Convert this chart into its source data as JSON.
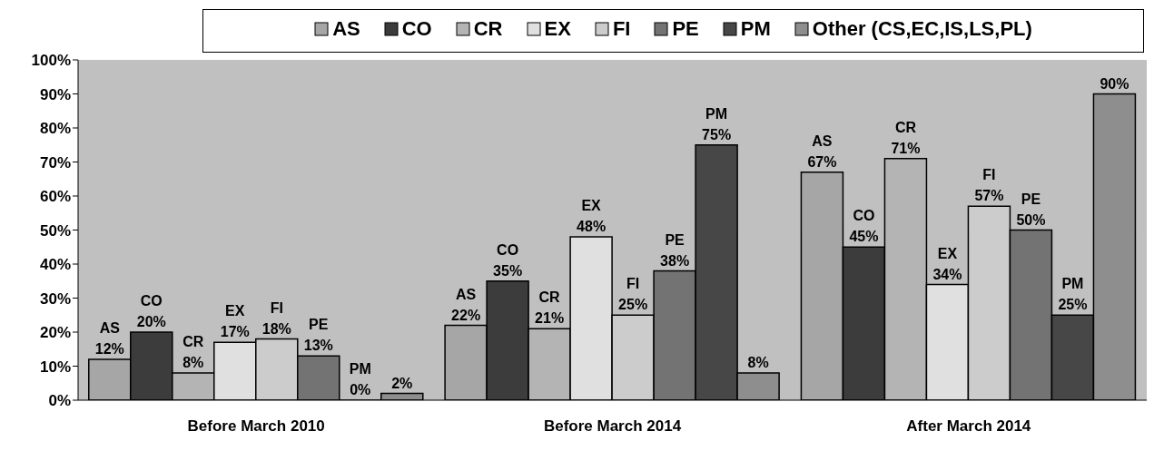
{
  "chart_data": {
    "type": "bar",
    "categories": [
      "Before March 2010",
      "Before March 2014",
      "After March 2014"
    ],
    "series": [
      {
        "name": "AS",
        "color": "#a6a6a6",
        "values": [
          12,
          22,
          67
        ],
        "value_labels": [
          "AS 12%",
          "AS 22%",
          "AS 67%"
        ]
      },
      {
        "name": "CO",
        "color": "#3c3c3c",
        "values": [
          20,
          35,
          45
        ],
        "value_labels": [
          "CO 20%",
          "CO 35%",
          "CO 45%"
        ]
      },
      {
        "name": "CR",
        "color": "#b4b4b4",
        "values": [
          8,
          21,
          71
        ],
        "value_labels": [
          "CR 8%",
          "CR 21%",
          "CR 71%"
        ]
      },
      {
        "name": "EX",
        "color": "#e0e0e0",
        "values": [
          17,
          48,
          34
        ],
        "value_labels": [
          "EX 17%",
          "EX 48%",
          "EX 34%"
        ]
      },
      {
        "name": "FI",
        "color": "#cccccc",
        "values": [
          18,
          25,
          57
        ],
        "value_labels": [
          "FI 18%",
          "FI 25%",
          "FI 57%"
        ]
      },
      {
        "name": "PE",
        "color": "#737373",
        "values": [
          13,
          38,
          50
        ],
        "value_labels": [
          "PE 13%",
          "PE 38%",
          "PE 50%"
        ]
      },
      {
        "name": "PM",
        "color": "#474747",
        "values": [
          0,
          75,
          25
        ],
        "value_labels": [
          "PM 0%",
          "PM 75%",
          "PM 25%"
        ]
      },
      {
        "name": "Other (CS,EC,IS,LS,PL)",
        "color": "#8e8e8e",
        "values": [
          2,
          8,
          90
        ],
        "value_labels": [
          "2%",
          "8%",
          "90%"
        ]
      }
    ],
    "ylim": [
      0,
      100
    ],
    "yticks": [
      {
        "value": 0,
        "label": "0%"
      },
      {
        "value": 10,
        "label": "10%"
      },
      {
        "value": 20,
        "label": "20%"
      },
      {
        "value": 30,
        "label": "30%"
      },
      {
        "value": 40,
        "label": "40%"
      },
      {
        "value": 50,
        "label": "50%"
      },
      {
        "value": 60,
        "label": "60%"
      },
      {
        "value": 70,
        "label": "70%"
      },
      {
        "value": 80,
        "label": "80%"
      },
      {
        "value": 90,
        "label": "90%"
      },
      {
        "value": 100,
        "label": "100%"
      }
    ],
    "legend": "top"
  }
}
